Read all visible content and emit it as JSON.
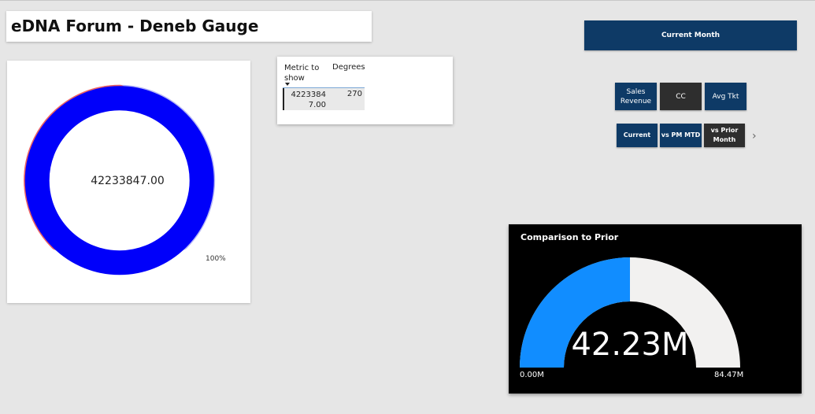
{
  "report": {
    "title": "eDNA Forum - Deneb Gauge"
  },
  "deneb_gauge": {
    "center_label": "42233847.00",
    "end_label": "100%",
    "value": 42233847.0,
    "degrees": 270,
    "colors": {
      "background_track": "#b6b6f7",
      "red_arc": "#ef6461",
      "blue_ring": "#0000fa"
    }
  },
  "table": {
    "headers": [
      "Metric to show",
      "Degrees"
    ],
    "rows": [
      {
        "metric": "42233847.00",
        "degrees": "270"
      }
    ]
  },
  "slicers": {
    "current_month": "Current Month",
    "metric_buttons": [
      {
        "label": "Sales Revenue",
        "selected": false
      },
      {
        "label": "CC",
        "selected": true
      },
      {
        "label": "Avg Tkt",
        "selected": false
      }
    ],
    "compare_buttons": [
      {
        "label": "Current",
        "selected": false
      },
      {
        "label": "vs PM MTD",
        "selected": false
      },
      {
        "label": "vs Prior Month",
        "selected": true
      }
    ],
    "next_icon": "chevron-right-icon"
  },
  "comparison": {
    "title": "Comparison to Prior",
    "value_label": "42.23M",
    "min_label": "0.00M",
    "max_label": "84.47M",
    "fill_fraction": 0.5,
    "colors": {
      "fill": "#118dff",
      "track": "#f2f1f0"
    }
  }
}
